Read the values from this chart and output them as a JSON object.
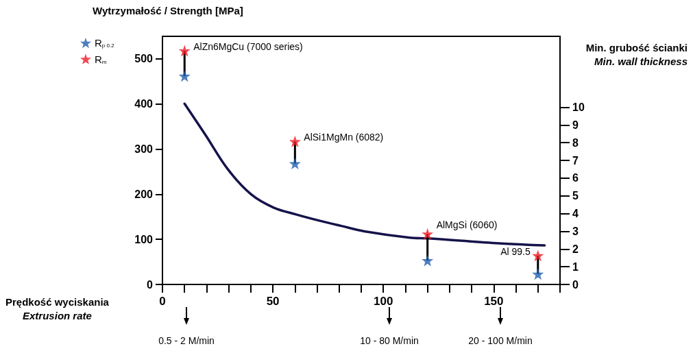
{
  "chart_data": {
    "type": "scatter",
    "ylabel": "Wytrzymałość / Strength [MPa]",
    "y2label": "Min. grubość ścianki\nMin. wall thickness",
    "xlabel": "Prędkość wyciskania\nExtrusion rate",
    "x": [
      10,
      60,
      120,
      170
    ],
    "series": [
      {
        "name": "R$_{p 0.2}$",
        "color": "#1f5fae",
        "values": [
          462,
          268,
          53,
          23
        ]
      },
      {
        "name": "R$_{m}$",
        "color": "#ee1c25",
        "values": [
          518,
          317,
          112,
          64
        ]
      },
      {
        "type": "line",
        "axis": "y2",
        "color": "#15134a",
        "marker": "none",
        "x": [
          10,
          19.4,
          29.6,
          40,
          50.3,
          60.5,
          71,
          81,
          91.4,
          112,
          120,
          151,
          173
        ],
        "values": [
          10.2,
          8.45,
          6.5,
          5.1,
          4.34,
          3.95,
          3.6,
          3.3,
          3.0,
          2.64,
          2.6,
          2.33,
          2.2
        ]
      }
    ],
    "marker": "star",
    "xlim": [
      0,
      180
    ],
    "xticks": [
      0,
      {
        "value": 10,
        "label": null
      },
      {
        "value": 20,
        "label": null
      },
      {
        "value": 30,
        "label": null
      },
      {
        "value": 40,
        "label": null
      },
      50,
      {
        "value": 60,
        "label": null
      },
      {
        "value": 70,
        "label": null
      },
      {
        "value": 80,
        "label": null
      },
      {
        "value": 90,
        "label": null
      },
      100,
      {
        "value": 110,
        "label": null
      },
      {
        "value": 120,
        "label": null
      },
      {
        "value": 130,
        "label": null
      },
      {
        "value": 140,
        "label": null
      },
      150,
      {
        "value": 160,
        "label": null
      },
      {
        "value": 170,
        "label": null
      },
      {
        "value": 180,
        "label": null
      }
    ],
    "ylim": [
      0,
      550
    ],
    "yticks": [
      0,
      100,
      200,
      300,
      400,
      500
    ],
    "y2lim": [
      0,
      14
    ],
    "y2ticks": [
      0,
      1,
      2,
      3,
      4,
      5,
      6,
      7,
      8,
      9,
      10
    ],
    "legend": "left",
    "grid": false,
    "annotations": [
      {
        "text": "AlZn6MgCu (7000 series)",
        "x": 10,
        "y": 518
      },
      {
        "text": "AlSi1MgMn (6082)",
        "x": 60,
        "y": 317
      },
      {
        "text": "AlMgSi (6060)",
        "x": 120,
        "y": 112
      },
      {
        "text": "Al 99.5",
        "x": 170,
        "y": 64
      },
      "0.5 - 2 M/min",
      "10 - 80 M/min",
      "20 - 100 M/min"
    ]
  }
}
